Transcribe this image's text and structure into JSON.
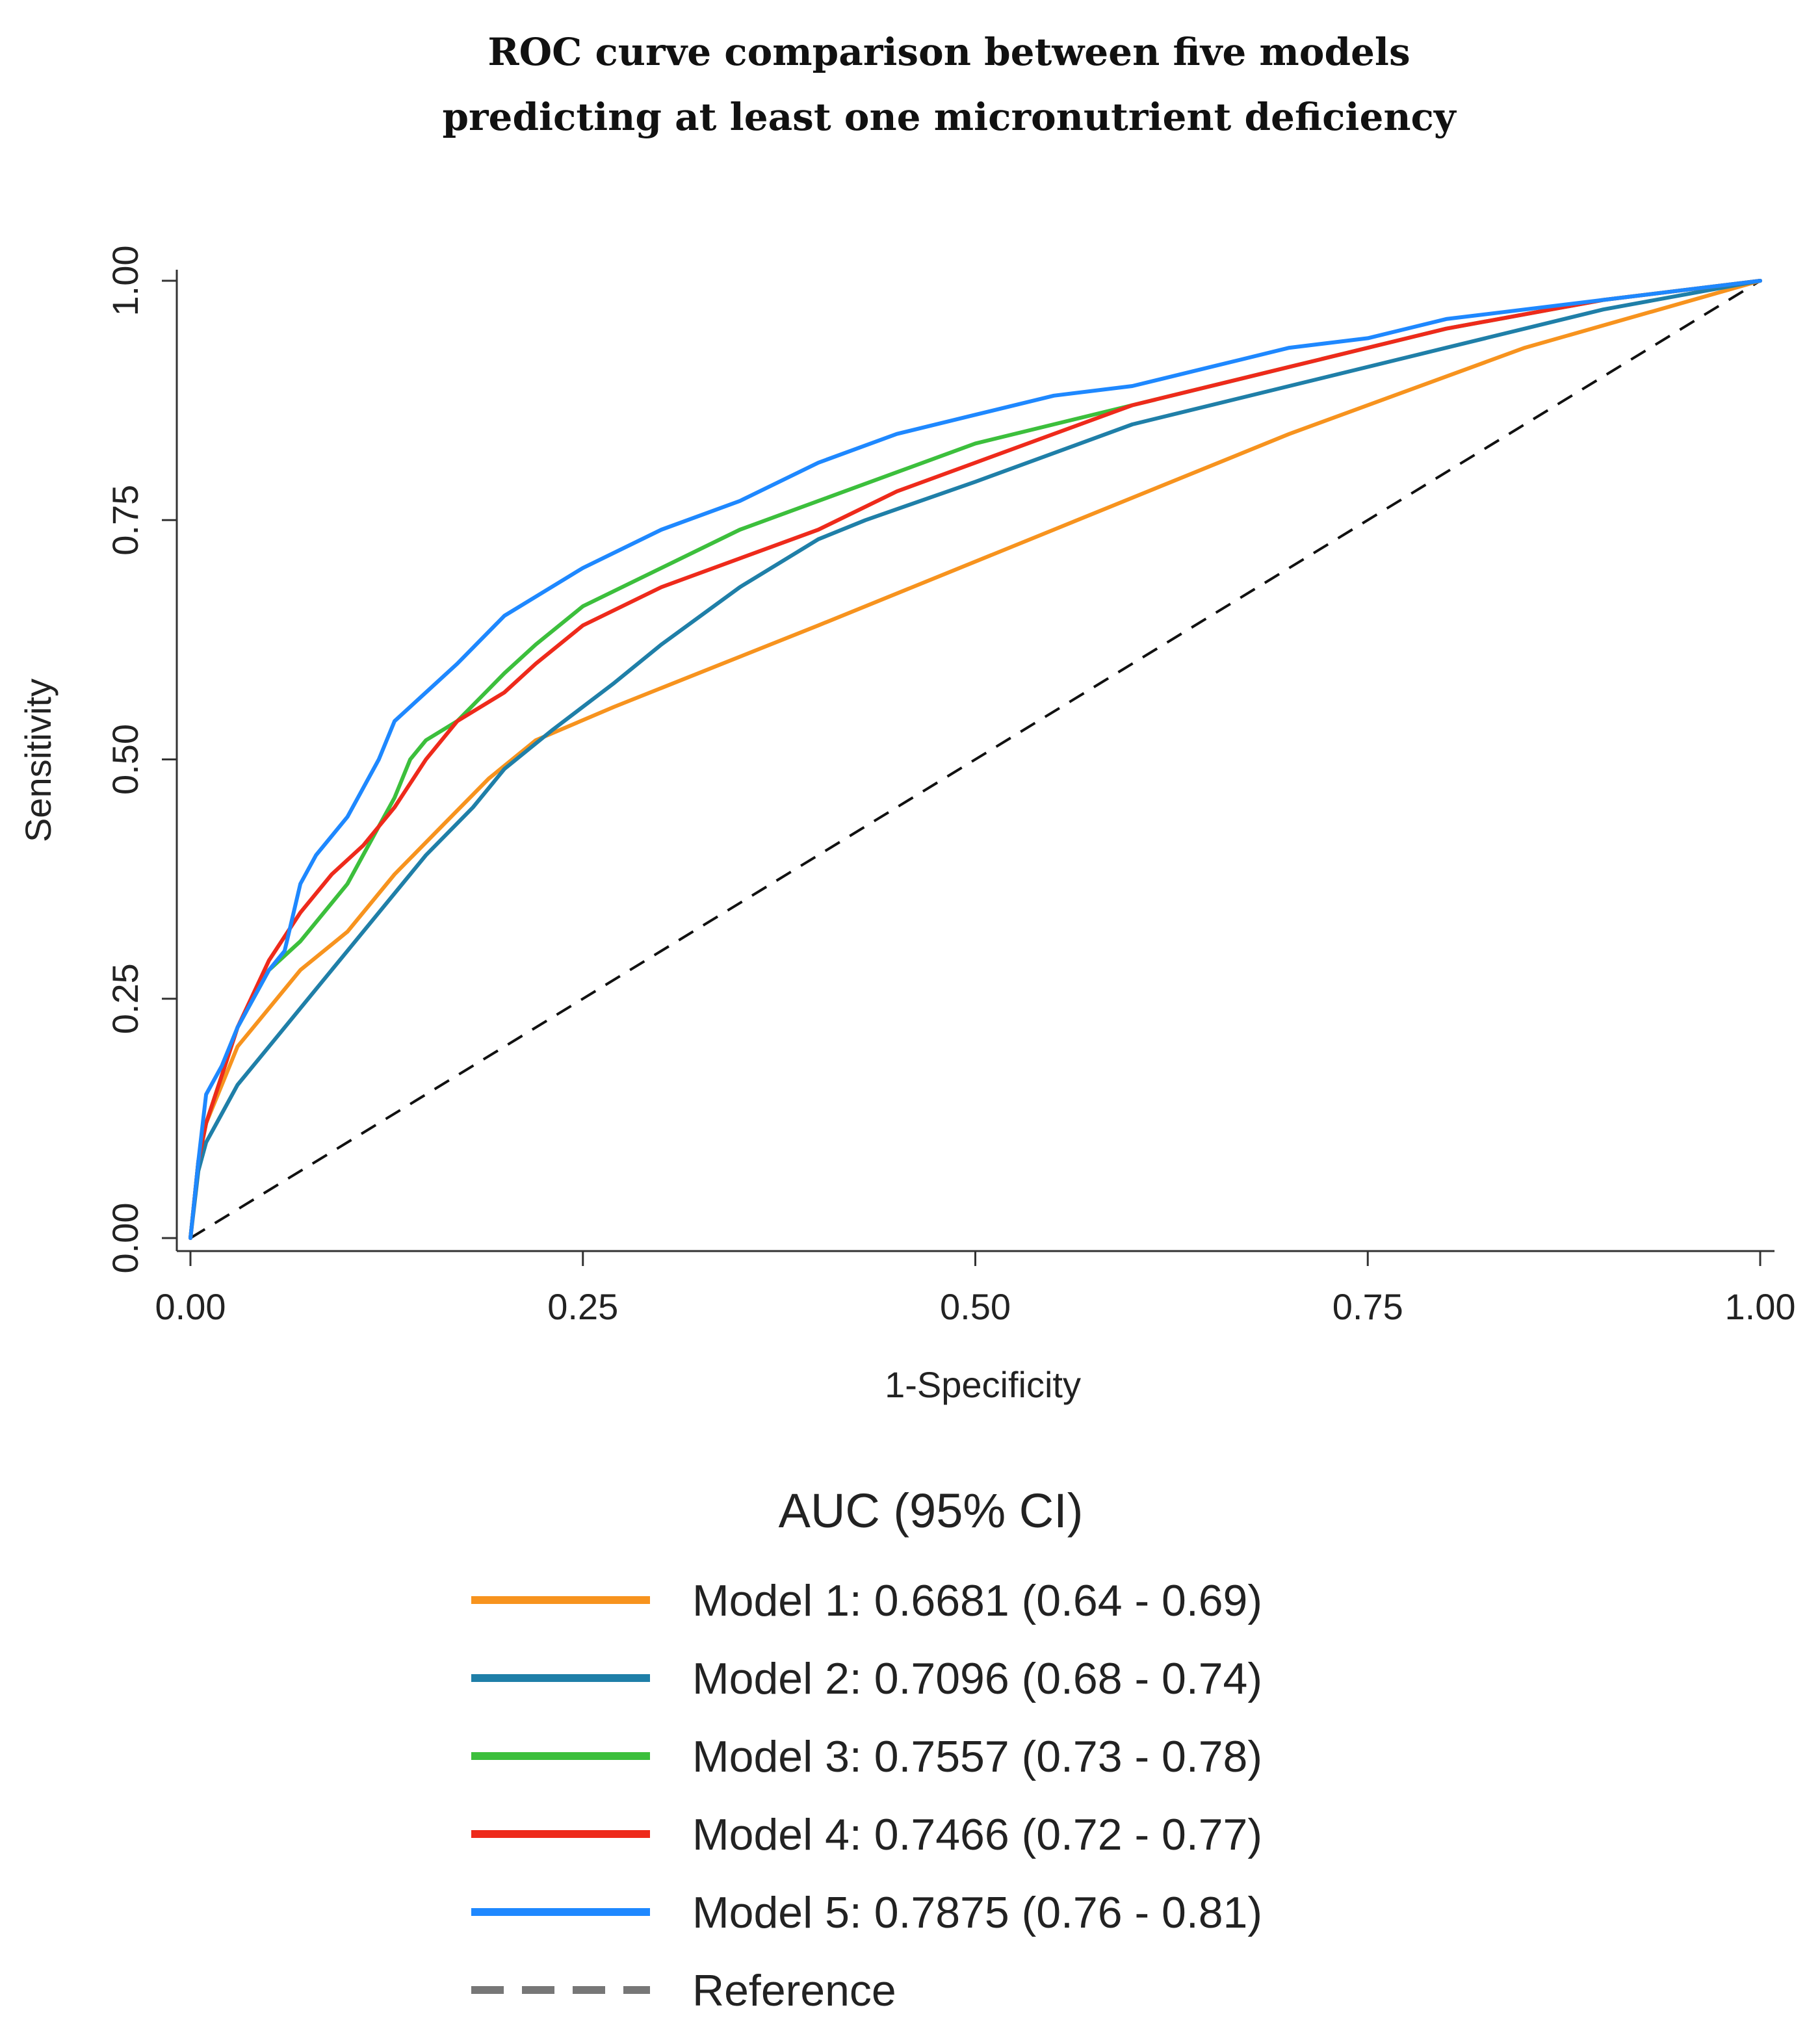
{
  "chart_data": {
    "type": "line",
    "title_lines": [
      "ROC curve comparison between five models",
      "predicting at least one micronutrient deficiency"
    ],
    "xlabel": "1-Specificity",
    "ylabel": "Sensitivity",
    "xlim": [
      0,
      1
    ],
    "ylim": [
      0,
      1
    ],
    "x_ticks": [
      "0.00",
      "0.25",
      "0.50",
      "0.75",
      "1.00"
    ],
    "y_ticks": [
      "0.00",
      "0.25",
      "0.50",
      "0.75",
      "1.00"
    ],
    "grid": false,
    "legend_position": "bottom",
    "legend_title": "AUC (95% CI)",
    "series": [
      {
        "name": "Model 1: 0.6681 (0.64 - 0.69)",
        "color": "#f7931e",
        "dash": "solid",
        "x": [
          0,
          0.005,
          0.01,
          0.02,
          0.03,
          0.05,
          0.07,
          0.1,
          0.13,
          0.16,
          0.19,
          0.22,
          0.27,
          0.4,
          0.55,
          0.7,
          0.85,
          1.0
        ],
        "y": [
          0,
          0.08,
          0.12,
          0.16,
          0.2,
          0.24,
          0.28,
          0.32,
          0.38,
          0.43,
          0.48,
          0.52,
          0.555,
          0.64,
          0.74,
          0.84,
          0.93,
          1.0
        ]
      },
      {
        "name": "Model 2: 0.7096 (0.68 - 0.74)",
        "color": "#1f7fa8",
        "dash": "solid",
        "x": [
          0,
          0.005,
          0.01,
          0.02,
          0.03,
          0.05,
          0.08,
          0.1,
          0.13,
          0.15,
          0.18,
          0.2,
          0.23,
          0.27,
          0.3,
          0.35,
          0.4,
          0.43,
          0.5,
          0.6,
          0.7,
          0.8,
          0.9,
          1.0
        ],
        "y": [
          0,
          0.07,
          0.1,
          0.13,
          0.16,
          0.2,
          0.26,
          0.3,
          0.36,
          0.4,
          0.45,
          0.49,
          0.53,
          0.58,
          0.62,
          0.68,
          0.73,
          0.75,
          0.79,
          0.85,
          0.89,
          0.93,
          0.97,
          1.0
        ]
      },
      {
        "name": "Model 3: 0.7557 (0.73 - 0.78)",
        "color": "#3cbf3c",
        "dash": "solid",
        "x": [
          0,
          0.005,
          0.01,
          0.02,
          0.03,
          0.05,
          0.07,
          0.1,
          0.12,
          0.13,
          0.14,
          0.15,
          0.17,
          0.2,
          0.22,
          0.25,
          0.3,
          0.35,
          0.4,
          0.45,
          0.5,
          0.6,
          0.7,
          0.8,
          0.9,
          1.0
        ],
        "y": [
          0,
          0.08,
          0.12,
          0.17,
          0.22,
          0.28,
          0.31,
          0.37,
          0.43,
          0.46,
          0.5,
          0.52,
          0.54,
          0.59,
          0.62,
          0.66,
          0.7,
          0.74,
          0.77,
          0.8,
          0.83,
          0.87,
          0.91,
          0.95,
          0.98,
          1.0
        ]
      },
      {
        "name": "Model 4: 0.7466 (0.72 - 0.77)",
        "color": "#ee2a1b",
        "dash": "solid",
        "x": [
          0,
          0.005,
          0.01,
          0.02,
          0.03,
          0.05,
          0.07,
          0.09,
          0.11,
          0.13,
          0.15,
          0.17,
          0.2,
          0.22,
          0.25,
          0.3,
          0.35,
          0.4,
          0.45,
          0.5,
          0.6,
          0.7,
          0.8,
          0.9,
          1.0
        ],
        "y": [
          0,
          0.08,
          0.12,
          0.17,
          0.22,
          0.29,
          0.34,
          0.38,
          0.41,
          0.45,
          0.5,
          0.54,
          0.57,
          0.6,
          0.64,
          0.68,
          0.71,
          0.74,
          0.78,
          0.81,
          0.87,
          0.91,
          0.95,
          0.98,
          1.0
        ]
      },
      {
        "name": "Model 5: 0.7875 (0.76 - 0.81)",
        "color": "#1e88ff",
        "dash": "solid",
        "x": [
          0,
          0.005,
          0.01,
          0.02,
          0.03,
          0.05,
          0.06,
          0.07,
          0.08,
          0.1,
          0.12,
          0.13,
          0.15,
          0.17,
          0.2,
          0.22,
          0.25,
          0.3,
          0.35,
          0.4,
          0.45,
          0.5,
          0.55,
          0.6,
          0.65,
          0.7,
          0.75,
          0.8,
          0.85,
          0.9,
          0.95,
          1.0
        ],
        "y": [
          0,
          0.08,
          0.15,
          0.18,
          0.22,
          0.28,
          0.3,
          0.37,
          0.4,
          0.44,
          0.5,
          0.54,
          0.57,
          0.6,
          0.65,
          0.67,
          0.7,
          0.74,
          0.77,
          0.81,
          0.84,
          0.86,
          0.88,
          0.89,
          0.91,
          0.93,
          0.94,
          0.96,
          0.97,
          0.98,
          0.99,
          1.0
        ]
      },
      {
        "name": "Reference",
        "color": "#111111",
        "legend_color": "#777777",
        "dash": "dashed",
        "x": [
          0,
          1
        ],
        "y": [
          0,
          1
        ]
      }
    ]
  }
}
